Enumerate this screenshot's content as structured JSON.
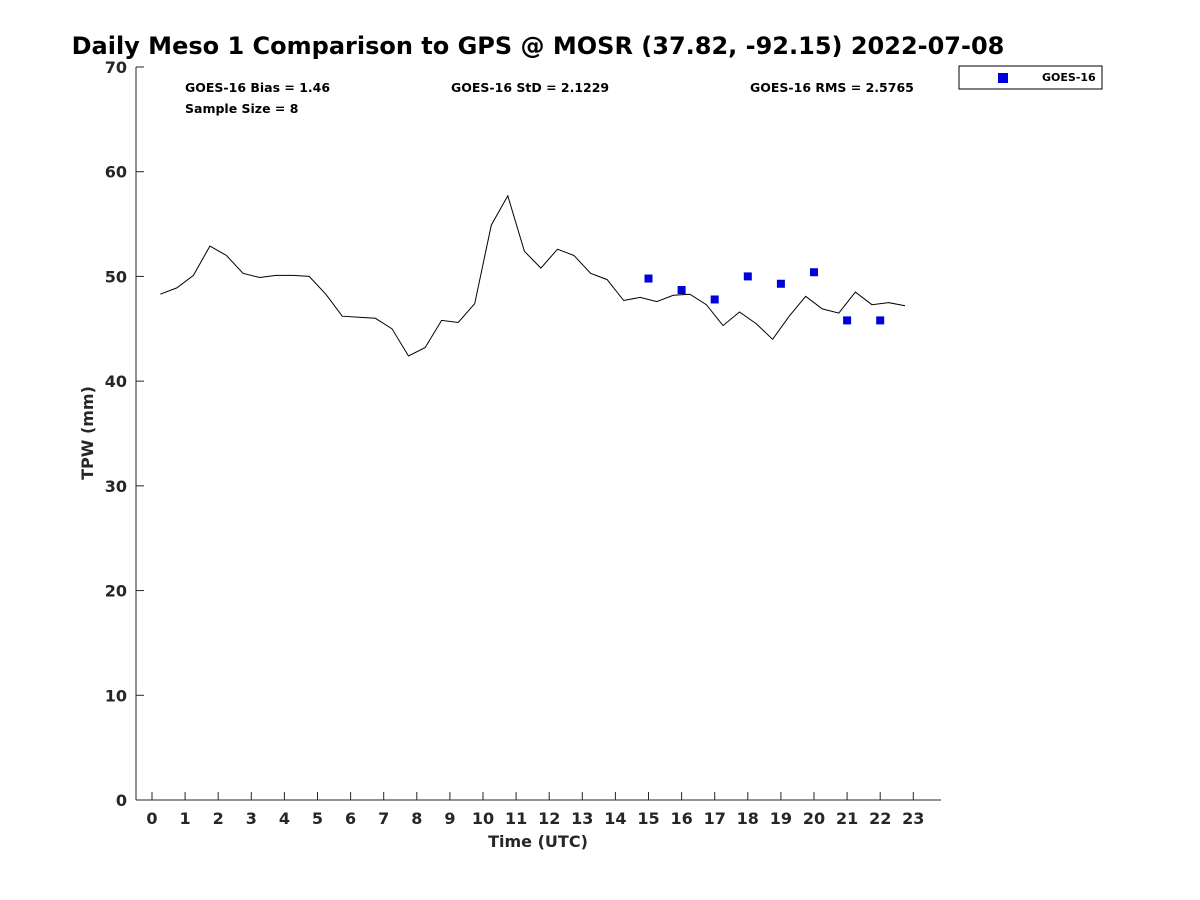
{
  "chart_data": {
    "type": "line",
    "title": "Daily Meso 1 Comparison to GPS @ MOSR (37.82, -92.15) 2022-07-08",
    "xlabel": "Time (UTC)",
    "ylabel": "TPW (mm)",
    "xlim": [
      -0.5,
      23.8
    ],
    "ylim": [
      0,
      70
    ],
    "x_ticks": [
      0,
      1,
      2,
      3,
      4,
      5,
      6,
      7,
      8,
      9,
      10,
      11,
      12,
      13,
      14,
      15,
      16,
      17,
      18,
      19,
      20,
      21,
      22,
      23
    ],
    "y_ticks": [
      0,
      10,
      20,
      30,
      40,
      50,
      60,
      70
    ],
    "grid": false,
    "legend_position": "top-right (outside)",
    "stats": {
      "bias": "GOES-16 Bias = 1.46",
      "std": "GOES-16 StD = 2.1229",
      "rms": "GOES-16 RMS = 2.5765",
      "sample_size": "Sample Size = 8"
    },
    "gps_series": {
      "color": "#000000",
      "x": [
        0.25,
        0.75,
        1.25,
        1.75,
        2.25,
        2.75,
        3.25,
        3.75,
        4.25,
        4.75,
        5.25,
        5.75,
        6.25,
        6.75,
        7.25,
        7.75,
        8.25,
        8.75,
        9.25,
        9.75,
        10.25,
        10.75,
        11.25,
        11.75,
        12.25,
        12.75,
        13.25,
        13.75,
        14.25,
        14.75,
        15.25,
        15.75,
        16.25,
        16.75,
        17.25,
        17.75,
        18.25,
        18.75,
        19.25,
        19.75,
        20.25,
        20.75,
        21.25,
        21.75,
        22.25,
        22.75
      ],
      "y": [
        48.3,
        48.9,
        50.1,
        52.9,
        52.0,
        50.3,
        49.9,
        50.1,
        50.1,
        50.0,
        48.3,
        46.2,
        46.1,
        46.0,
        45.0,
        42.4,
        43.2,
        45.8,
        45.6,
        47.4,
        54.9,
        57.7,
        52.4,
        50.8,
        52.6,
        52.0,
        50.3,
        49.7,
        47.7,
        48.0,
        47.6,
        48.2,
        48.3,
        47.3,
        45.3,
        46.6,
        45.5,
        44.0,
        46.2,
        48.1,
        46.9,
        46.5,
        48.5,
        47.3,
        47.5,
        47.2
      ]
    },
    "series": [
      {
        "name": "GOES-16",
        "color": "#0000dd",
        "marker": "square",
        "x": [
          15,
          16,
          17,
          18,
          19,
          20,
          21,
          22
        ],
        "y": [
          49.8,
          48.7,
          47.8,
          50.0,
          49.3,
          50.4,
          45.8,
          45.8
        ]
      }
    ]
  }
}
